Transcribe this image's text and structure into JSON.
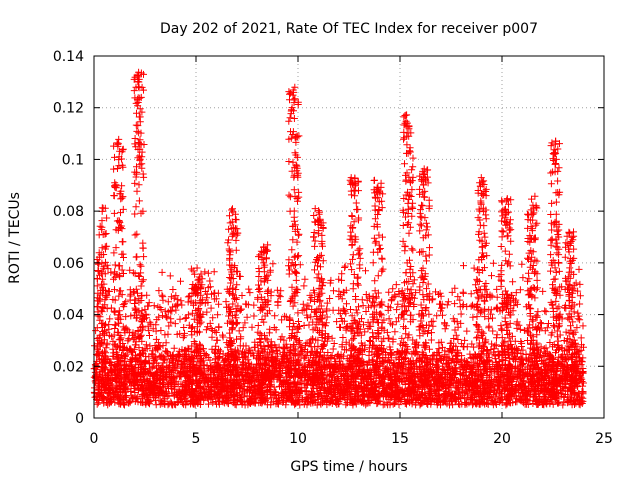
{
  "chart_data": {
    "type": "scatter",
    "title": "Day 202 of 2021, Rate Of TEC Index for receiver p007",
    "xlabel": "GPS time / hours",
    "ylabel": "ROTI / TECUs",
    "xlim": [
      0,
      25
    ],
    "ylim": [
      0,
      0.14
    ],
    "xticks": [
      0,
      5,
      10,
      15,
      20,
      25
    ],
    "yticks": [
      0,
      0.02,
      0.04,
      0.06,
      0.08,
      0.1,
      0.12,
      0.14
    ],
    "xtick_labels": [
      "0",
      "5",
      "10",
      "15",
      "20",
      "25"
    ],
    "ytick_labels": [
      "0",
      "0.02",
      "0.04",
      "0.06",
      "0.08",
      "0.1",
      "0.12",
      "0.14"
    ],
    "grid": true,
    "marker": "+",
    "color": "#ff0000",
    "data_extent_hours": [
      0,
      24
    ],
    "series": [
      {
        "name": "ROTI",
        "peaks": [
          {
            "x": 0.4,
            "y": 0.082
          },
          {
            "x": 1.2,
            "y": 0.109
          },
          {
            "x": 2.2,
            "y": 0.134
          },
          {
            "x": 5.0,
            "y": 0.058
          },
          {
            "x": 6.8,
            "y": 0.081
          },
          {
            "x": 8.3,
            "y": 0.067
          },
          {
            "x": 9.8,
            "y": 0.128
          },
          {
            "x": 11.0,
            "y": 0.081
          },
          {
            "x": 12.8,
            "y": 0.096
          },
          {
            "x": 13.9,
            "y": 0.092
          },
          {
            "x": 15.4,
            "y": 0.118
          },
          {
            "x": 16.2,
            "y": 0.097
          },
          {
            "x": 19.0,
            "y": 0.093
          },
          {
            "x": 20.2,
            "y": 0.085
          },
          {
            "x": 21.5,
            "y": 0.087
          },
          {
            "x": 22.6,
            "y": 0.108
          },
          {
            "x": 23.3,
            "y": 0.072
          }
        ],
        "baseline": [
          0.005,
          0.03
        ],
        "typical_max": 0.05
      }
    ]
  }
}
